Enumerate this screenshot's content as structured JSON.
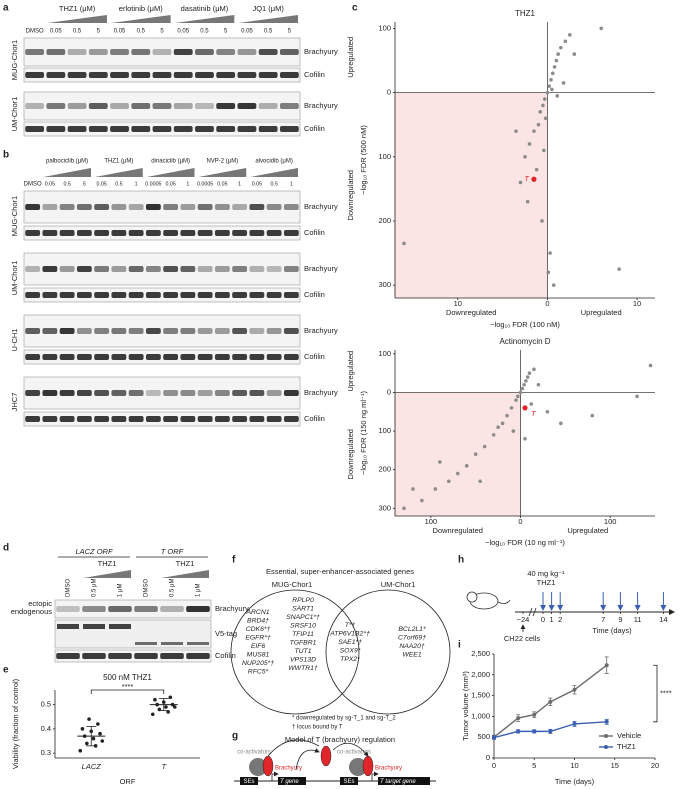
{
  "panels": [
    "a",
    "b",
    "c",
    "d",
    "e",
    "f",
    "g",
    "h",
    "i"
  ],
  "a": {
    "drugs": [
      "THZ1 (μM)",
      "erlotinib (μM)",
      "dasatinib (μM)",
      "JQ1 (μM)"
    ],
    "control": "DMSO",
    "doses": [
      "0.05",
      "0.5",
      "5"
    ],
    "cell_lines": [
      "MUG-Chor1",
      "UM-Chor1"
    ],
    "proteins": [
      "Brachyury",
      "Cofilin"
    ]
  },
  "b": {
    "drugs": [
      "palbociclib (μM)",
      "THZ1 (μM)",
      "dinaciclib (μM)",
      "NVP-2 (μM)",
      "alvocidib (μM)"
    ],
    "control": "DMSO",
    "doses": [
      [
        "0.05",
        "0.5",
        "5"
      ],
      [
        "0.05",
        "0.5",
        "1"
      ],
      [
        "0.0005",
        "0.05",
        "1"
      ],
      [
        "0.0005",
        "0.05",
        "1"
      ],
      [
        "0.05",
        "0.5",
        "1"
      ]
    ],
    "cell_lines": [
      "MUG-Chor1",
      "UM-Chor1",
      "U-CH1",
      "JHC7"
    ],
    "proteins": [
      "Brachyury",
      "Cofilin"
    ]
  },
  "d": {
    "orfs": [
      "LACZ ORF",
      "T ORF"
    ],
    "treatments": [
      "THZ1",
      "THZ1"
    ],
    "lanes": [
      "DMSO",
      "0.5 μM",
      "1 μM",
      "DMSO",
      "0.5 μM",
      "1 μM"
    ],
    "bands": [
      "ectopic",
      "endogenous"
    ],
    "proteins": [
      "Brachyury",
      "V5-tag",
      "Cofilin"
    ]
  },
  "f": {
    "title": "Essential, super-enhancer-associated genes",
    "sets": [
      "MUG-Chor1",
      "UM-Chor1"
    ],
    "mug_only_1": [
      "ARCN1",
      "BRD4†",
      "CDK6*†",
      "EGFR*†",
      "EIF6",
      "MUS81",
      "NUP205*†",
      "RFC5*"
    ],
    "mug_only_2": [
      "RPLP0",
      "SART1",
      "SNAPC1*†",
      "SRSF10",
      "TFIP11",
      "TGFBR1",
      "TUT1",
      "VPS13D",
      "WWTR1†"
    ],
    "shared": [
      "T*†",
      "ATP6V1B2*†",
      "SAE1*†",
      "SOX9*",
      "TPX2*"
    ],
    "um_only": [
      "BCL2L1*",
      "C7orf69†",
      "NAA20†",
      "WEE1"
    ],
    "footnotes": [
      "* downregulated by sg-T_1 and sg-T_2",
      "† locus bound by T"
    ]
  },
  "g": {
    "title": "Model of T (brachyury) regulation",
    "coactivators": [
      "co-activators",
      "co-activators"
    ],
    "proteins": [
      "Brachyury",
      "Brachyury"
    ],
    "elements": [
      "SEs",
      "SEs"
    ],
    "genes": [
      "T gene",
      "T target gene"
    ]
  },
  "h": {
    "dose": "40 mg kg⁻¹",
    "drug": "THZ1",
    "cells": "CH22 cells",
    "x_label": "Time (days)",
    "ticks": [
      {
        "value": -24,
        "label": "−24"
      },
      0,
      1,
      2,
      7,
      9,
      11,
      14
    ],
    "dose_days": [
      0,
      1,
      2,
      7,
      9,
      11,
      14
    ]
  },
  "chart_data": [
    {
      "type": "scatter",
      "title": "THZ1",
      "x_label": "−log₁₀ FDR (100 nM)",
      "y_label": "−log₁₀ FDR (500 nM)",
      "y_annotations": [
        "Upregulated",
        "Downregulated"
      ],
      "x_annotations": [
        "Downregulated",
        "Upregulated"
      ],
      "xlim": [
        -17,
        12
      ],
      "ylim": [
        -320,
        110
      ],
      "xticks": [
        {
          "value": -10,
          "label": "10"
        },
        0,
        10
      ],
      "yticks": [
        100,
        0,
        {
          "value": -100,
          "label": "100"
        },
        {
          "value": -200,
          "label": "200"
        },
        {
          "value": -300,
          "label": "300"
        }
      ],
      "color": "#8c8c8c",
      "x": [
        -16,
        -3,
        -2.5,
        -2,
        -1.5,
        -1,
        -0.8,
        -0.5,
        -0.3,
        0,
        0.2,
        0.4,
        0.6,
        0.8,
        1,
        1.2,
        1.5,
        2,
        2.5,
        -1.2,
        -0.6,
        0.3,
        0.7,
        -2.2,
        1.8,
        0.1,
        -0.4,
        6,
        8,
        0.5,
        -0.2,
        3,
        -3.5,
        1.1
      ],
      "values": [
        -235,
        -140,
        -100,
        -80,
        -60,
        -50,
        -30,
        -20,
        -10,
        0,
        10,
        20,
        30,
        40,
        50,
        60,
        70,
        80,
        90,
        -120,
        -200,
        -250,
        -300,
        -170,
        15,
        -280,
        -90,
        100,
        -275,
        5,
        -40,
        60,
        -60,
        -5
      ],
      "highlight": {
        "label": "T",
        "x": -1.5,
        "y": -135,
        "color": "#e0262a"
      }
    },
    {
      "type": "scatter",
      "title": "Actinomycin D",
      "x_label": "−log₁₀ FDR (10 ng ml⁻¹)",
      "y_label": "−log₁₀ FDR (150 ng ml⁻¹)",
      "y_annotations": [
        "Upregulated",
        "Downregulated"
      ],
      "x_annotations": [
        "Downregulated",
        "Upregulated"
      ],
      "xlim": [
        -140,
        150
      ],
      "ylim": [
        -320,
        110
      ],
      "xticks": [
        {
          "value": -100,
          "label": "100"
        },
        0,
        100
      ],
      "yticks": [
        100,
        0,
        {
          "value": -100,
          "label": "100"
        },
        {
          "value": -200,
          "label": "200"
        },
        {
          "value": -300,
          "label": "300"
        }
      ],
      "color": "#8c8c8c",
      "x": [
        -130,
        -110,
        -95,
        -80,
        -70,
        -60,
        -50,
        -40,
        -30,
        -25,
        -20,
        -15,
        -10,
        -8,
        -5,
        -3,
        0,
        2,
        4,
        6,
        8,
        10,
        12,
        15,
        20,
        30,
        45,
        80,
        130,
        145,
        -45,
        -90,
        -120,
        5
      ],
      "values": [
        -300,
        -280,
        -250,
        -230,
        -210,
        -190,
        -160,
        -140,
        -110,
        -90,
        -80,
        -60,
        -40,
        -100,
        -20,
        -10,
        0,
        10,
        20,
        30,
        40,
        50,
        -30,
        60,
        20,
        -50,
        -80,
        -60,
        -10,
        70,
        -230,
        -180,
        -250,
        -120
      ],
      "highlight": {
        "label": "T",
        "x": 5,
        "y": -40,
        "color": "#e0262a"
      }
    },
    {
      "type": "dot",
      "title": "500 nM THZ1",
      "y_label": "Viability (fraction of control)",
      "x_label": "ORF",
      "categories": [
        "LACZ",
        "T"
      ],
      "ylim": [
        0.28,
        0.56
      ],
      "yticks": [
        0.3,
        0.4,
        0.5
      ],
      "color": "#222222",
      "points": [
        [
          0.31,
          0.33,
          0.34,
          0.35,
          0.36,
          0.37,
          0.38,
          0.39,
          0.4,
          0.42,
          0.44
        ],
        [
          0.46,
          0.47,
          0.48,
          0.49,
          0.49,
          0.5,
          0.5,
          0.51,
          0.52,
          0.53
        ]
      ],
      "mean": [
        0.37,
        0.5
      ],
      "sd": [
        0.04,
        0.025
      ],
      "significance": "****"
    },
    {
      "type": "line",
      "y_label": "Tumor volume (mm³)",
      "x_label": "Time (days)",
      "xlim": [
        0,
        20
      ],
      "ylim": [
        0,
        2500
      ],
      "xticks": [
        0,
        5,
        10,
        15,
        20
      ],
      "yticks": [
        0,
        500,
        {
          "value": 1000,
          "label": "1,000"
        },
        {
          "value": 1500,
          "label": "1,500"
        },
        {
          "value": 2000,
          "label": "2,000"
        },
        {
          "value": 2500,
          "label": "2,500"
        }
      ],
      "x": [
        0,
        3,
        5,
        7,
        10,
        14
      ],
      "series": [
        {
          "name": "Vehicle",
          "color": "#6b6b6b",
          "values": [
            500,
            960,
            1040,
            1350,
            1640,
            2230
          ],
          "errors": [
            50,
            80,
            70,
            90,
            100,
            200
          ]
        },
        {
          "name": "THZ1",
          "color": "#3a5fb0",
          "values": [
            490,
            640,
            640,
            640,
            820,
            870
          ],
          "errors": [
            40,
            40,
            40,
            50,
            60,
            60
          ]
        }
      ],
      "significance": "****",
      "legend": "lower right"
    }
  ]
}
